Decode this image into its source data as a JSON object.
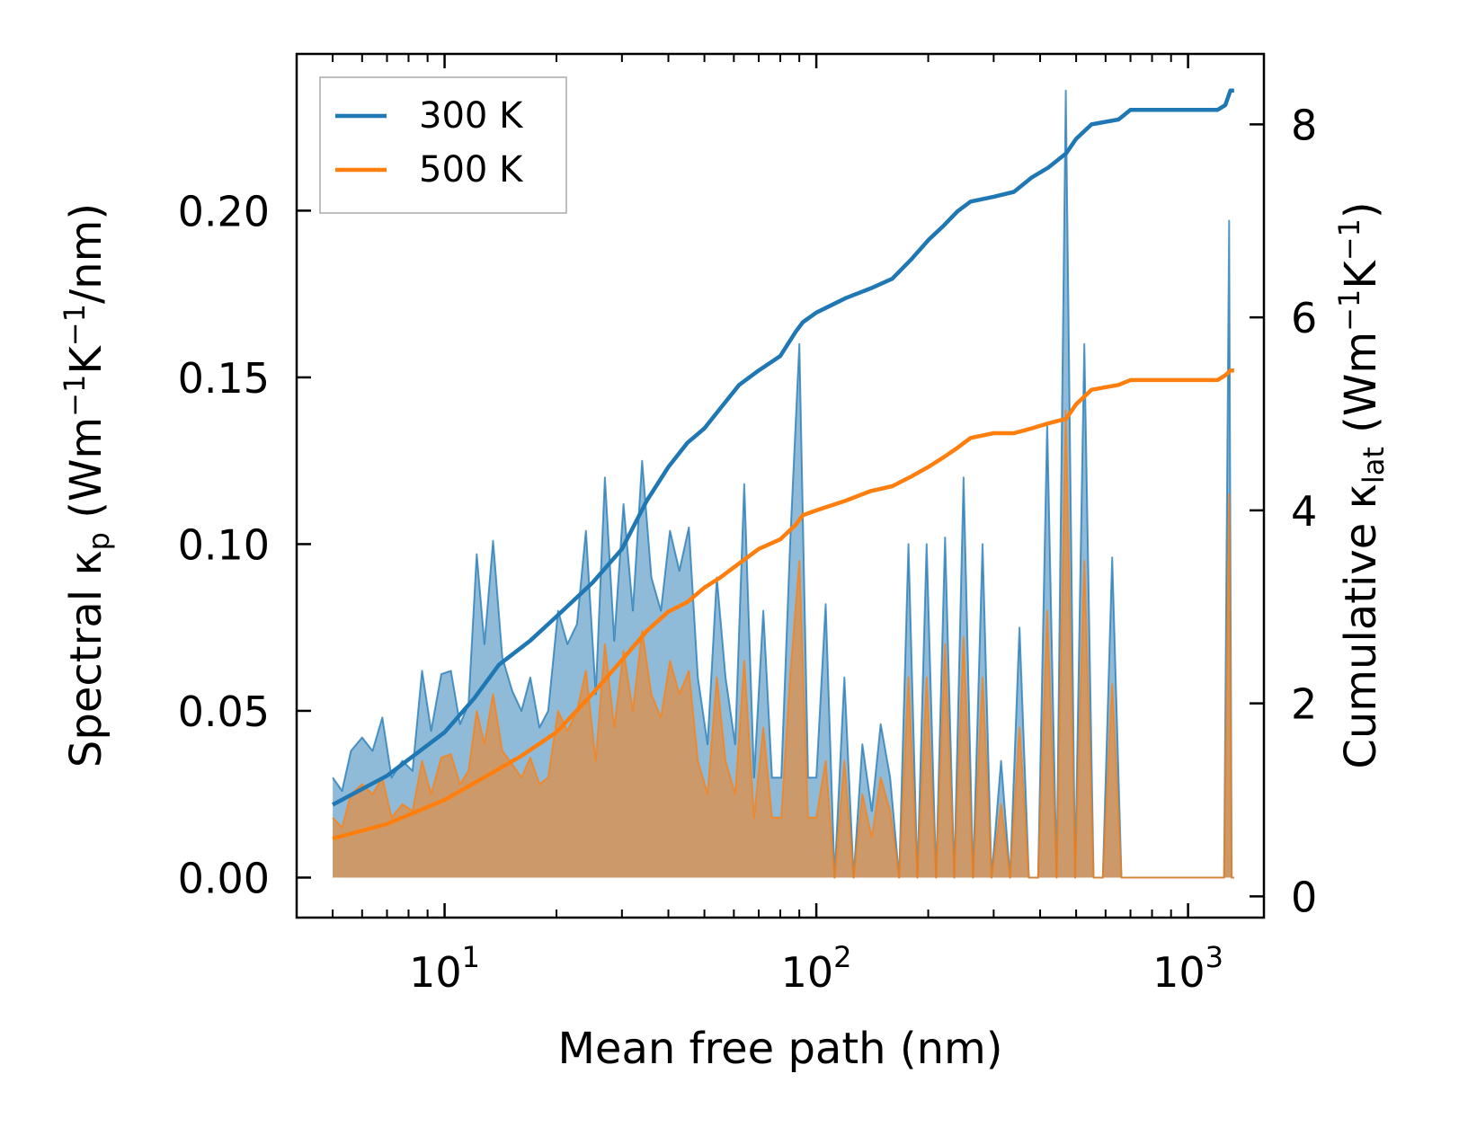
{
  "chart_data": {
    "type": "line",
    "xscale": "log",
    "xlim": [
      4.0,
      1600
    ],
    "ylim": [
      -0.012,
      0.247
    ],
    "y2lim": [
      -0.22,
      8.73
    ],
    "xlabel": "Mean free path (nm)",
    "ylabel": {
      "pre": "Spectral κ",
      "sub": "p",
      "post": " (Wm",
      "sup1": "−1",
      "mid": "K",
      "sup2": "−1",
      "end": "/nm)"
    },
    "y2label": {
      "pre": "Cumulative κ",
      "sub": "lat",
      "post": " (Wm",
      "sup1": "−1",
      "mid": "K",
      "sup2": "−1",
      "end": ")"
    },
    "yticks": [
      0.0,
      0.05,
      0.1,
      0.15,
      0.2
    ],
    "yticklabels": [
      "0.00",
      "0.05",
      "0.10",
      "0.15",
      "0.20"
    ],
    "y2ticks": [
      0,
      2,
      4,
      6,
      8
    ],
    "y2ticklabels": [
      "0",
      "2",
      "4",
      "6",
      "8"
    ],
    "xticks": [
      10,
      100,
      1000
    ],
    "xticklabels": [
      {
        "base": "10",
        "exp": "1"
      },
      {
        "base": "10",
        "exp": "2"
      },
      {
        "base": "10",
        "exp": "3"
      }
    ],
    "legend": {
      "position": "top-left",
      "entries": [
        {
          "label": "300 K",
          "color": "#1f77b4"
        },
        {
          "label": "500 K",
          "color": "#ff7f0e"
        }
      ]
    },
    "series": [
      {
        "name": "300 K",
        "color": "#1f77b4",
        "spectral": {
          "x": [
            5.0,
            5.3,
            5.6,
            6.0,
            6.4,
            6.8,
            7.2,
            7.7,
            8.2,
            8.7,
            9.2,
            9.8,
            10.4,
            11.0,
            11.6,
            12.2,
            12.8,
            13.5,
            14.3,
            15.2,
            16.1,
            17.0,
            18.0,
            19.0,
            20.2,
            21.4,
            22.7,
            24.0,
            25.5,
            27.0,
            28.6,
            30.3,
            32.1,
            34.0,
            36.0,
            38.2,
            40.4,
            42.8,
            45.4,
            48.0,
            51.0,
            54.0,
            57.0,
            60.5,
            64.0,
            68.0,
            72.0,
            76.0,
            80.5,
            85.0,
            90.0,
            95.0,
            100.0,
            106.0,
            112.0,
            119.0,
            126.0,
            133.0,
            141.0,
            149.0,
            158.0,
            167.0,
            177.0,
            187.0,
            198.0,
            210.0,
            222.0,
            235.0,
            249.0,
            264.0,
            280.0,
            296.0,
            314.0,
            332.0,
            352.0,
            373.0,
            395.0,
            418.0,
            443.0,
            469.0,
            497.0,
            526.0,
            557.0,
            590.0,
            625.0,
            662.0,
            700.0,
            900.0,
            1100.0,
            1250.0,
            1290.0,
            1310.0,
            1330.0
          ],
          "values": [
            0.03,
            0.026,
            0.038,
            0.042,
            0.038,
            0.048,
            0.03,
            0.035,
            0.032,
            0.062,
            0.044,
            0.061,
            0.062,
            0.046,
            0.052,
            0.097,
            0.07,
            0.101,
            0.066,
            0.056,
            0.05,
            0.06,
            0.045,
            0.05,
            0.08,
            0.07,
            0.076,
            0.104,
            0.055,
            0.12,
            0.071,
            0.112,
            0.08,
            0.125,
            0.09,
            0.08,
            0.104,
            0.092,
            0.105,
            0.06,
            0.04,
            0.09,
            0.06,
            0.04,
            0.118,
            0.03,
            0.08,
            0.03,
            0.03,
            0.1,
            0.16,
            0.03,
            0.03,
            0.082,
            0.0,
            0.06,
            0.0,
            0.04,
            0.02,
            0.046,
            0.03,
            0.0,
            0.1,
            0.0,
            0.1,
            0.0,
            0.102,
            0.0,
            0.12,
            0.0,
            0.1,
            0.0,
            0.035,
            0.0,
            0.075,
            0.0,
            0.0,
            0.136,
            0.0,
            0.236,
            0.0,
            0.16,
            0.0,
            0.0,
            0.096,
            0.0,
            0.0,
            0.0,
            0.0,
            0.0,
            0.197,
            0.0,
            0.0
          ]
        },
        "cumulative": {
          "x": [
            5.0,
            7.0,
            10.0,
            12.0,
            14.0,
            17.0,
            20.0,
            25.0,
            30.0,
            35.0,
            40.0,
            45.0,
            50.0,
            55.0,
            62.0,
            70.0,
            80.0,
            88.0,
            92.0,
            100.0,
            120.0,
            140.0,
            160.0,
            180.0,
            200.0,
            220.0,
            240.0,
            260.0,
            300.0,
            340.0,
            380.0,
            420.0,
            470.0,
            500.0,
            550.0,
            650.0,
            700.0,
            1200.0,
            1260.0,
            1300.0,
            1330.0
          ],
          "values": [
            0.95,
            1.25,
            1.7,
            2.05,
            2.4,
            2.65,
            2.9,
            3.25,
            3.6,
            4.1,
            4.45,
            4.7,
            4.85,
            5.05,
            5.3,
            5.45,
            5.6,
            5.85,
            5.95,
            6.05,
            6.2,
            6.3,
            6.4,
            6.6,
            6.8,
            6.95,
            7.1,
            7.2,
            7.25,
            7.3,
            7.45,
            7.55,
            7.7,
            7.85,
            8.0,
            8.05,
            8.15,
            8.15,
            8.2,
            8.35,
            8.35
          ]
        }
      },
      {
        "name": "500 K",
        "color": "#ff7f0e",
        "spectral": {
          "x": [
            5.0,
            5.3,
            5.6,
            6.0,
            6.4,
            6.8,
            7.2,
            7.7,
            8.2,
            8.7,
            9.2,
            9.8,
            10.4,
            11.0,
            11.6,
            12.2,
            12.8,
            13.5,
            14.3,
            15.2,
            16.1,
            17.0,
            18.0,
            19.0,
            20.2,
            21.4,
            22.7,
            24.0,
            25.5,
            27.0,
            28.6,
            30.3,
            32.1,
            34.0,
            36.0,
            38.2,
            40.4,
            42.8,
            45.4,
            48.0,
            51.0,
            54.0,
            57.0,
            60.5,
            64.0,
            68.0,
            72.0,
            76.0,
            80.5,
            85.0,
            90.0,
            95.0,
            100.0,
            106.0,
            112.0,
            119.0,
            126.0,
            133.0,
            141.0,
            149.0,
            158.0,
            167.0,
            177.0,
            187.0,
            198.0,
            210.0,
            222.0,
            235.0,
            249.0,
            264.0,
            280.0,
            296.0,
            314.0,
            332.0,
            352.0,
            373.0,
            395.0,
            418.0,
            443.0,
            469.0,
            497.0,
            526.0,
            557.0,
            590.0,
            625.0,
            662.0,
            700.0,
            900.0,
            1100.0,
            1250.0,
            1290.0,
            1310.0,
            1330.0
          ],
          "values": [
            0.018,
            0.015,
            0.025,
            0.028,
            0.025,
            0.03,
            0.018,
            0.022,
            0.02,
            0.035,
            0.025,
            0.036,
            0.037,
            0.028,
            0.032,
            0.05,
            0.04,
            0.055,
            0.038,
            0.034,
            0.03,
            0.036,
            0.028,
            0.03,
            0.05,
            0.044,
            0.05,
            0.062,
            0.035,
            0.07,
            0.045,
            0.068,
            0.05,
            0.074,
            0.055,
            0.048,
            0.065,
            0.055,
            0.062,
            0.035,
            0.025,
            0.06,
            0.035,
            0.025,
            0.065,
            0.018,
            0.045,
            0.018,
            0.018,
            0.06,
            0.095,
            0.018,
            0.018,
            0.035,
            0.0,
            0.035,
            0.0,
            0.025,
            0.012,
            0.03,
            0.02,
            0.0,
            0.06,
            0.0,
            0.06,
            0.0,
            0.07,
            0.0,
            0.072,
            0.0,
            0.06,
            0.0,
            0.022,
            0.0,
            0.045,
            0.0,
            0.0,
            0.08,
            0.0,
            0.14,
            0.0,
            0.095,
            0.0,
            0.0,
            0.058,
            0.0,
            0.0,
            0.0,
            0.0,
            0.0,
            0.115,
            0.0,
            0.0
          ]
        },
        "cumulative": {
          "x": [
            5.0,
            7.0,
            10.0,
            13.0,
            16.0,
            20.0,
            25.0,
            30.0,
            35.0,
            40.0,
            45.0,
            50.0,
            55.0,
            62.0,
            70.0,
            80.0,
            88.0,
            92.0,
            100.0,
            120.0,
            140.0,
            160.0,
            180.0,
            200.0,
            220.0,
            240.0,
            260.0,
            300.0,
            340.0,
            380.0,
            420.0,
            470.0,
            500.0,
            550.0,
            650.0,
            700.0,
            1200.0,
            1260.0,
            1300.0,
            1330.0
          ],
          "values": [
            0.6,
            0.75,
            1.0,
            1.25,
            1.45,
            1.7,
            2.1,
            2.45,
            2.75,
            2.95,
            3.05,
            3.2,
            3.3,
            3.45,
            3.6,
            3.7,
            3.85,
            3.95,
            4.0,
            4.1,
            4.2,
            4.25,
            4.35,
            4.45,
            4.55,
            4.65,
            4.75,
            4.8,
            4.8,
            4.85,
            4.9,
            4.95,
            5.1,
            5.25,
            5.3,
            5.35,
            5.35,
            5.4,
            5.45,
            5.45
          ]
        }
      }
    ]
  }
}
